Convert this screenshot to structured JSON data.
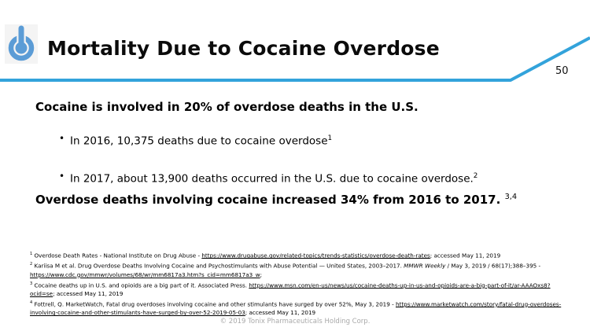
{
  "slide": {
    "title": "Mortality Due to Cocaine Overdose",
    "page_number": "50",
    "heading": "Cocaine is involved in 20% of overdose deaths in the U.S.",
    "bullets": [
      {
        "text": "In 2016, 10,375 deaths due to cocaine overdose",
        "sup": "1"
      },
      {
        "text": "In 2017, about 13,900 deaths occurred in the U.S. due to cocaine overdose.",
        "sup": "2"
      }
    ],
    "statement": "Overdose deaths involving cocaine increased 34% from 2016 to 2017.",
    "statement_sup": "3,4",
    "footer": "© 2019 Tonix Pharmaceuticals Holding Corp.",
    "colors": {
      "accent_line": "#33a3db",
      "logo_blue": "#5b9cd6"
    },
    "icons": {
      "logo": "power-icon",
      "bullet": "bullet-dot-icon"
    }
  },
  "footnotes": [
    {
      "segments": [
        {
          "t": "1",
          "sup": true
        },
        {
          "t": " Overdose Death Rates - National Institute on Drug Abuse - "
        },
        {
          "t": "https://www.drugabuse.gov/related-topics/trends-statistics/overdose-death-rates",
          "u": true
        },
        {
          "t": "; accessed May 11, 2019"
        }
      ]
    },
    {
      "segments": [
        {
          "t": "2",
          "sup": true
        },
        {
          "t": " Kariisa M et al. Drug Overdose Deaths Involving Cocaine and Psychostimulants with Abuse Potential — United States, 2003–2017. "
        },
        {
          "t": "MMWR Weekly",
          "i": true
        },
        {
          "t": " / May 3, 2019 / 68(17);388–395 - "
        },
        {
          "t": "https://www.cdc.gov/mmwr/volumes/68/wr/mm6817a3.htm?s_cid=mm6817a3_w",
          "u": true
        },
        {
          "t": ";"
        }
      ]
    },
    {
      "segments": [
        {
          "t": "3",
          "sup": true
        },
        {
          "t": " Cocaine deaths up in U.S. and opioids are a big part of it.  Associated Press. "
        },
        {
          "t": "https://www.msn.com/en-us/news/us/cocaine-deaths-up-in-us-and-opioids-are-a-big-part-of-it/ar-AAAOxs8?ocid=se",
          "u": true
        },
        {
          "t": "; accessed May 11, 2019"
        }
      ]
    },
    {
      "segments": [
        {
          "t": "4",
          "sup": true
        },
        {
          "t": " Fottrell, Q. MarketWatch, Fatal drug overdoses involving cocaine and other stimulants have surged by over 52%, May 3, 2019 - "
        },
        {
          "t": "https://www.marketwatch.com/story/fatal-drug-overdoses-involving-cocaine-and-other-stimulants-have-surged-by-over-52-2019-05-03",
          "u": true
        },
        {
          "t": "; accessed May 11, 2019"
        }
      ]
    }
  ]
}
